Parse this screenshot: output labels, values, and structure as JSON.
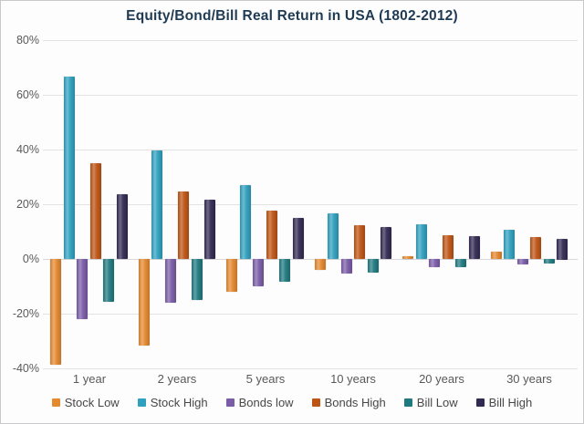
{
  "chart_data": {
    "type": "bar",
    "title": "Equity/Bond/Bill Real Return in USA (1802-2012)",
    "categories": [
      "1 year",
      "2 years",
      "5 years",
      "10 years",
      "20 years",
      "30 years"
    ],
    "series": [
      {
        "name": "Stock Low",
        "color": "#E5892F",
        "values": [
          -38.6,
          -31.6,
          -11.9,
          -4.1,
          1.0,
          2.6
        ]
      },
      {
        "name": "Stock High",
        "color": "#2FA0BE",
        "values": [
          66.6,
          39.6,
          27.0,
          16.8,
          12.6,
          10.6
        ]
      },
      {
        "name": "Bonds low",
        "color": "#7A5CA8",
        "values": [
          -21.9,
          -15.9,
          -10.1,
          -5.4,
          -3.1,
          -2.0
        ]
      },
      {
        "name": "Bonds High",
        "color": "#BE5414",
        "values": [
          35.1,
          24.7,
          17.7,
          12.4,
          8.8,
          8.0
        ]
      },
      {
        "name": "Bill Low",
        "color": "#1F7A80",
        "values": [
          -15.6,
          -15.1,
          -8.3,
          -5.1,
          -3.0,
          -1.8
        ]
      },
      {
        "name": "Bill High",
        "color": "#332A52",
        "values": [
          23.7,
          21.6,
          14.9,
          11.6,
          8.3,
          7.5
        ]
      }
    ],
    "yticks": [
      80,
      60,
      40,
      20,
      0,
      -20,
      -40
    ],
    "ytick_labels": [
      "80%",
      "60%",
      "40%",
      "20%",
      "0%",
      "-20%",
      "-40%"
    ],
    "ylim": [
      -40,
      80
    ],
    "grid": true,
    "legend_position": "bottom",
    "background_color": "#fdfdfe",
    "title_color": "#1f3b54",
    "axis_label_color": "#595959"
  }
}
